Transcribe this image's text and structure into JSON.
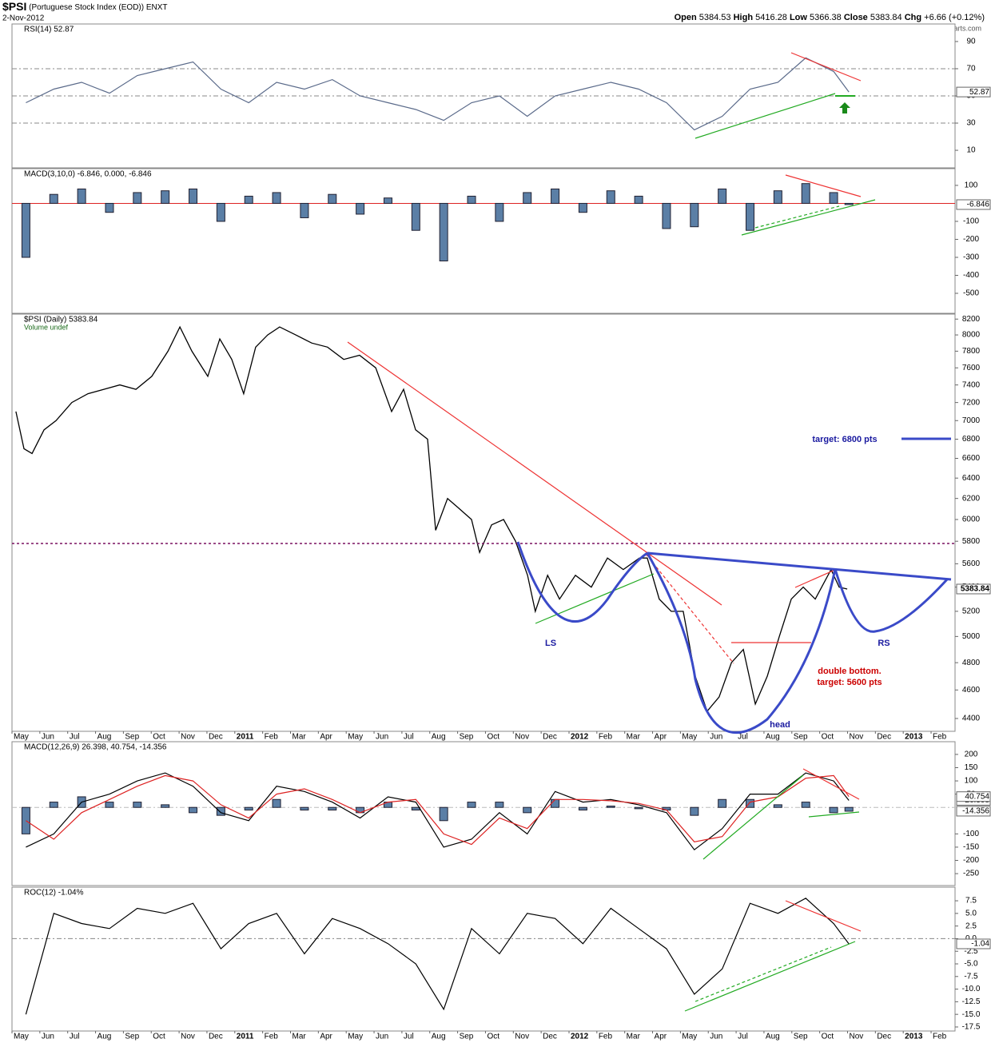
{
  "header": {
    "symbol": "$PSI",
    "name": "(Portuguese Stock Index (EOD))",
    "exchange": "ENXT",
    "date": "2-Nov-2012",
    "quote": [
      {
        "label": "Open",
        "value": 5384.53
      },
      {
        "label": "High",
        "value": 5416.28
      },
      {
        "label": "Low",
        "value": 5366.38
      },
      {
        "label": "Close",
        "value": 5383.84
      },
      {
        "label": "Chg",
        "value": "+6.66 (+0.12%)"
      }
    ],
    "credit": "@StockCharts.com"
  },
  "annotations": [
    "LS",
    "head",
    "RS",
    "double bottom.",
    "target: 5600 pts",
    "target: 6800 pts"
  ],
  "chart_data": [
    {
      "type": "line",
      "title": "RSI(14) 52.87",
      "xlim": [
        0,
        33.86
      ],
      "ylim": [
        -2.9,
        102.9
      ],
      "yticks": [
        10,
        30,
        50,
        70,
        90
      ],
      "ref_lines": [
        30,
        50,
        70
      ],
      "ref_color": "#888888",
      "x": [
        0.5,
        1.5,
        2.5,
        3.5,
        4.5,
        5.5,
        6.5,
        7.5,
        8.5,
        9.5,
        10.5,
        11.5,
        12.5,
        13.5,
        14.5,
        15.5,
        16.5,
        17.5,
        18.5,
        19.5,
        20.5,
        21.5,
        22.5,
        23.5,
        24.5,
        25.5,
        26.5,
        27.5,
        28.5,
        29.5,
        30.05
      ],
      "series": [
        {
          "color": "#5a6a8a",
          "values": [
            45,
            55,
            60,
            52,
            65,
            70,
            75,
            55,
            45,
            60,
            55,
            62,
            50,
            45,
            40,
            32,
            45,
            50,
            35,
            50,
            55,
            60,
            55,
            45,
            25,
            35,
            55,
            60,
            78,
            68,
            52.87
          ]
        }
      ]
    },
    {
      "type": "bar",
      "title": "MACD(3,10,0) -6.846, 0.000, -6.846",
      "xlim": [
        0,
        33.86
      ],
      "ylim": [
        -611,
        193
      ],
      "yticks": [
        100,
        -100,
        -200,
        -300,
        -400,
        -500
      ],
      "ref_lines": [
        0
      ],
      "ref_color": "#dd2222",
      "x": [
        0.5,
        1.5,
        2.5,
        3.5,
        4.5,
        5.5,
        6.5,
        7.5,
        8.5,
        9.5,
        10.5,
        11.5,
        12.5,
        13.5,
        14.5,
        15.5,
        16.5,
        17.5,
        18.5,
        19.5,
        20.5,
        21.5,
        22.5,
        23.5,
        24.5,
        25.5,
        26.5,
        27.5,
        28.5,
        29.5,
        30.05
      ],
      "series": [
        {
          "color": "#5b7fa6",
          "values": [
            -300,
            50,
            80,
            -50,
            60,
            70,
            80,
            -100,
            40,
            60,
            -80,
            50,
            -60,
            30,
            -150,
            -320,
            40,
            -100,
            60,
            80,
            -50,
            70,
            40,
            -140,
            -130,
            80,
            -150,
            70,
            110,
            60,
            -6.846
          ]
        }
      ]
    },
    {
      "type": "line",
      "title": "$PSI (Daily) 5383.84",
      "subtitle": "Volume undef",
      "log": true,
      "xlim": [
        0,
        33.86
      ],
      "ylim": [
        4313,
        8264
      ],
      "yticks": [
        4400,
        4600,
        4800,
        5000,
        5200,
        5400,
        5600,
        5800,
        6000,
        6200,
        6400,
        6600,
        6800,
        7000,
        7200,
        7400,
        7600,
        7800,
        8000,
        8200
      ],
      "xticks": [
        {
          "value": 0,
          "label": "May"
        },
        {
          "value": 1,
          "label": "Jun"
        },
        {
          "value": 2,
          "label": "Jul"
        },
        {
          "value": 3,
          "label": "Aug"
        },
        {
          "value": 4,
          "label": "Sep"
        },
        {
          "value": 5,
          "label": "Oct"
        },
        {
          "value": 6,
          "label": "Nov"
        },
        {
          "value": 7,
          "label": "Dec"
        },
        {
          "value": 8,
          "label": "2011"
        },
        {
          "value": 9,
          "label": "Feb"
        },
        {
          "value": 10,
          "label": "Mar"
        },
        {
          "value": 11,
          "label": "Apr"
        },
        {
          "value": 12,
          "label": "May"
        },
        {
          "value": 13,
          "label": "Jun"
        },
        {
          "value": 14,
          "label": "Jul"
        },
        {
          "value": 15,
          "label": "Aug"
        },
        {
          "value": 16,
          "label": "Sep"
        },
        {
          "value": 17,
          "label": "Oct"
        },
        {
          "value": 18,
          "label": "Nov"
        },
        {
          "value": 19,
          "label": "Dec"
        },
        {
          "value": 20,
          "label": "2012"
        },
        {
          "value": 21,
          "label": "Feb"
        },
        {
          "value": 22,
          "label": "Mar"
        },
        {
          "value": 23,
          "label": "Apr"
        },
        {
          "value": 24,
          "label": "May"
        },
        {
          "value": 25,
          "label": "Jun"
        },
        {
          "value": 26,
          "label": "Jul"
        },
        {
          "value": 27,
          "label": "Aug"
        },
        {
          "value": 28,
          "label": "Sep"
        },
        {
          "value": 29,
          "label": "Oct"
        },
        {
          "value": 30,
          "label": "Nov"
        },
        {
          "value": 31,
          "label": "Dec"
        },
        {
          "value": 32,
          "label": "2013"
        },
        {
          "value": 33,
          "label": "Feb"
        }
      ],
      "x": [
        0.14,
        0.43,
        0.72,
        1.15,
        1.58,
        2.15,
        2.73,
        3.3,
        3.87,
        4.45,
        5.02,
        5.6,
        6.03,
        6.46,
        7.03,
        7.46,
        7.89,
        8.32,
        8.75,
        9.18,
        9.61,
        10.19,
        10.76,
        11.33,
        11.91,
        12.48,
        13.06,
        13.63,
        14.06,
        14.49,
        14.92,
        15.21,
        15.64,
        16.07,
        16.5,
        16.79,
        17.22,
        17.65,
        18.08,
        18.51,
        18.79,
        19.23,
        19.66,
        20.23,
        20.8,
        21.38,
        21.95,
        22.53,
        22.81,
        23.24,
        23.67,
        24.1,
        24.53,
        24.96,
        25.39,
        25.83,
        26.26,
        26.69,
        27.12,
        27.55,
        27.98,
        28.41,
        28.84,
        29.41,
        29.7,
        29.99
      ],
      "series": [
        {
          "color": "#000000",
          "values": [
            7100,
            6700,
            6650,
            6900,
            7000,
            7200,
            7300,
            7350,
            7400,
            7350,
            7500,
            7800,
            8100,
            7800,
            7500,
            7950,
            7700,
            7300,
            7850,
            8000,
            8100,
            8000,
            7900,
            7850,
            7700,
            7750,
            7600,
            7100,
            7350,
            6900,
            6800,
            5900,
            6200,
            6100,
            6000,
            5700,
            5950,
            6000,
            5800,
            5500,
            5200,
            5500,
            5300,
            5500,
            5400,
            5650,
            5550,
            5650,
            5650,
            5300,
            5200,
            5200,
            4700,
            4450,
            4550,
            4800,
            4900,
            4500,
            4700,
            5000,
            5300,
            5400,
            5300,
            5550,
            5400,
            5383.84
          ]
        }
      ]
    },
    {
      "type": "combo",
      "title": "MACD(12,26,9) 26.398, 40.754, -14.356",
      "xlim": [
        0,
        33.86
      ],
      "ylim": [
        -295,
        248
      ],
      "yticks": [
        200,
        150,
        100,
        50,
        -100,
        -150,
        -200,
        -250
      ],
      "ref_lines": [
        0
      ],
      "ref_color": "#bbbbbb",
      "x": [
        0.5,
        1.5,
        2.5,
        3.5,
        4.5,
        5.5,
        6.5,
        7.5,
        8.5,
        9.5,
        10.5,
        11.5,
        12.5,
        13.5,
        14.5,
        15.5,
        16.5,
        17.5,
        18.5,
        19.5,
        20.5,
        21.5,
        22.5,
        23.5,
        24.5,
        25.5,
        26.5,
        27.5,
        28.5,
        29.5,
        30.05
      ],
      "series": [
        {
          "kind": "bar",
          "color": "#5b7fa6",
          "values": [
            -100,
            20,
            40,
            20,
            20,
            10,
            -20,
            -30,
            -10,
            30,
            -10,
            -10,
            -20,
            20,
            -10,
            -50,
            20,
            20,
            -20,
            30,
            -10,
            5,
            -5,
            -10,
            -30,
            30,
            30,
            10,
            20,
            -20,
            -14.356
          ]
        },
        {
          "kind": "line",
          "color": "#000000",
          "values": [
            -150,
            -100,
            20,
            50,
            100,
            130,
            80,
            -20,
            -50,
            80,
            60,
            20,
            -40,
            40,
            20,
            -150,
            -120,
            -20,
            -100,
            60,
            20,
            30,
            10,
            -20,
            -160,
            -80,
            50,
            50,
            130,
            100,
            26.398
          ]
        },
        {
          "kind": "line",
          "color": "#dd2222",
          "values": [
            -50,
            -120,
            -20,
            30,
            80,
            120,
            100,
            10,
            -40,
            50,
            70,
            30,
            -20,
            20,
            30,
            -100,
            -140,
            -40,
            -80,
            30,
            30,
            25,
            15,
            -10,
            -130,
            -110,
            20,
            40,
            110,
            120,
            40.754
          ]
        }
      ]
    },
    {
      "type": "line",
      "title": "ROC(12) -1.04%",
      "xlim": [
        0,
        33.86
      ],
      "ylim": [
        -18.3,
        10.2
      ],
      "yticks": [
        {
          "value": 7.5,
          "label": "7.5"
        },
        {
          "value": 5,
          "label": "5.0"
        },
        {
          "value": 2.5,
          "label": "2.5"
        },
        {
          "value": 0,
          "label": "0.0"
        },
        -2.5,
        {
          "value": -5,
          "label": "-5.0"
        },
        -7.5,
        {
          "value": -10,
          "label": "-10.0"
        },
        -12.5,
        {
          "value": -15,
          "label": "-15.0"
        },
        -17.5
      ],
      "ref_lines": [
        0
      ],
      "ref_color": "#888888",
      "xticks": [
        {
          "value": 0,
          "label": "May"
        },
        {
          "value": 1,
          "label": "Jun"
        },
        {
          "value": 2,
          "label": "Jul"
        },
        {
          "value": 3,
          "label": "Aug"
        },
        {
          "value": 4,
          "label": "Sep"
        },
        {
          "value": 5,
          "label": "Oct"
        },
        {
          "value": 6,
          "label": "Nov"
        },
        {
          "value": 7,
          "label": "Dec"
        },
        {
          "value": 8,
          "label": "2011"
        },
        {
          "value": 9,
          "label": "Feb"
        },
        {
          "value": 10,
          "label": "Mar"
        },
        {
          "value": 11,
          "label": "Apr"
        },
        {
          "value": 12,
          "label": "May"
        },
        {
          "value": 13,
          "label": "Jun"
        },
        {
          "value": 14,
          "label": "Jul"
        },
        {
          "value": 15,
          "label": "Aug"
        },
        {
          "value": 16,
          "label": "Sep"
        },
        {
          "value": 17,
          "label": "Oct"
        },
        {
          "value": 18,
          "label": "Nov"
        },
        {
          "value": 19,
          "label": "Dec"
        },
        {
          "value": 20,
          "label": "2012"
        },
        {
          "value": 21,
          "label": "Feb"
        },
        {
          "value": 22,
          "label": "Mar"
        },
        {
          "value": 23,
          "label": "Apr"
        },
        {
          "value": 24,
          "label": "May"
        },
        {
          "value": 25,
          "label": "Jun"
        },
        {
          "value": 26,
          "label": "Jul"
        },
        {
          "value": 27,
          "label": "Aug"
        },
        {
          "value": 28,
          "label": "Sep"
        },
        {
          "value": 29,
          "label": "Oct"
        },
        {
          "value": 30,
          "label": "Nov"
        },
        {
          "value": 31,
          "label": "Dec"
        },
        {
          "value": 32,
          "label": "2013"
        },
        {
          "value": 33,
          "label": "Feb"
        }
      ],
      "x": [
        0.5,
        1.5,
        2.5,
        3.5,
        4.5,
        5.5,
        6.5,
        7.5,
        8.5,
        9.5,
        10.5,
        11.5,
        12.5,
        13.5,
        14.5,
        15.5,
        16.5,
        17.5,
        18.5,
        19.5,
        20.5,
        21.5,
        22.5,
        23.5,
        24.5,
        25.5,
        26.5,
        27.5,
        28.5,
        29.5,
        30.05
      ],
      "series": [
        {
          "color": "#000000",
          "values": [
            -15,
            5,
            3,
            2,
            6,
            5,
            7,
            -2,
            3,
            5,
            -3,
            4,
            2,
            -1,
            -5,
            -14,
            2,
            -3,
            5,
            4,
            -1,
            6,
            2,
            -2,
            -11,
            -6,
            7,
            5,
            8,
            3,
            -1.04
          ]
        }
      ]
    }
  ]
}
